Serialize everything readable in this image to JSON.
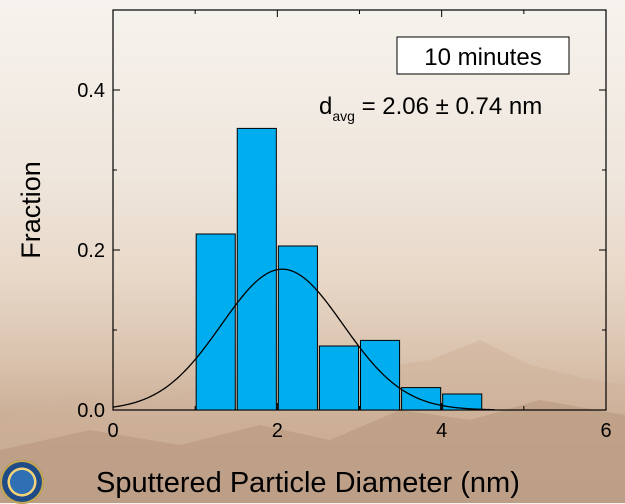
{
  "chart_data": {
    "type": "bar",
    "title": "",
    "xlabel": "Sputtered Particle Diameter (nm)",
    "ylabel": "Fraction",
    "xlim": [
      0,
      6
    ],
    "ylim": [
      0,
      0.5
    ],
    "xticks": [
      "0",
      "2",
      "4",
      "6"
    ],
    "yticks": [
      "0.0",
      "0.2",
      "0.4"
    ],
    "bin_width": 0.5,
    "bins": [
      {
        "x_start": 1.0,
        "x_end": 1.5,
        "value": 0.22
      },
      {
        "x_start": 1.5,
        "x_end": 2.0,
        "value": 0.352
      },
      {
        "x_start": 2.0,
        "x_end": 2.5,
        "value": 0.205
      },
      {
        "x_start": 2.5,
        "x_end": 3.0,
        "value": 0.08
      },
      {
        "x_start": 3.0,
        "x_end": 3.5,
        "value": 0.087
      },
      {
        "x_start": 3.5,
        "x_end": 4.0,
        "value": 0.028
      },
      {
        "x_start": 4.0,
        "x_end": 4.5,
        "value": 0.02
      }
    ],
    "fit_curve": {
      "type": "gaussian",
      "mean": 2.06,
      "sigma": 0.74,
      "peak": 0.176
    },
    "annotation_box": "10 minutes",
    "annotation_d": "d",
    "annotation_sub": "avg",
    "annotation_rest": " = 2.06 ± 0.74 nm",
    "colors": {
      "bar": "#00aeef",
      "bar_edge": "#000000",
      "curve": "#000000"
    }
  },
  "logo": {
    "icon": "department-of-energy-seal-icon"
  }
}
